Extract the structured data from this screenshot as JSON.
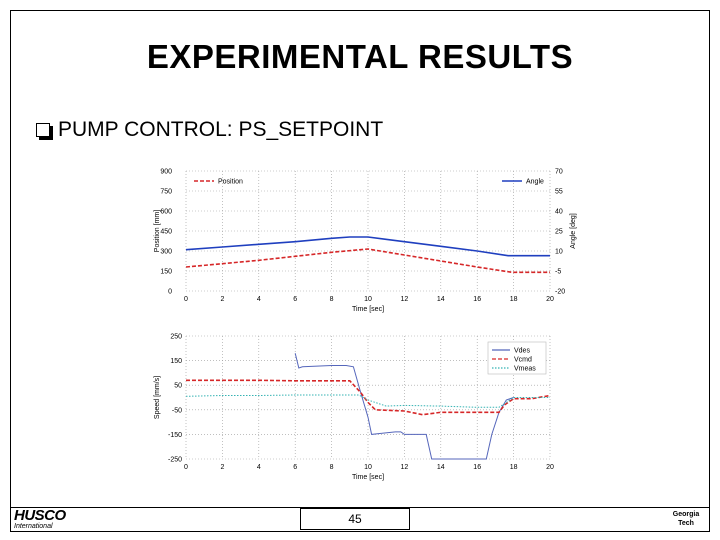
{
  "slide": {
    "title": "EXPERIMENTAL RESULTS",
    "bullet": "PUMP CONTROL: PS_SETPOINT",
    "page_number": "45",
    "logo_left_name": "HUSCO",
    "logo_left_sub": "International",
    "logo_right_line1": "Georgia",
    "logo_right_line2": "Tech"
  },
  "colors": {
    "position": "#d62728",
    "angle": "#1f3fbf",
    "vdes": "#5566bb",
    "vcmd": "#d62728",
    "vmeas": "#35b3b3"
  },
  "chart_data": [
    {
      "type": "line",
      "xlabel": "Time [sec]",
      "ylabel": "Position [mm]",
      "y2label": "Angle [deg]",
      "xlim": [
        0,
        20
      ],
      "ylim": [
        0,
        900
      ],
      "y2lim": [
        -20,
        70
      ],
      "xticks": [
        "0",
        "2",
        "4",
        "6",
        "8",
        "10",
        "12",
        "14",
        "16",
        "18",
        "20"
      ],
      "yticks": [
        "900",
        "750",
        "600",
        "450",
        "300",
        "150",
        "0"
      ],
      "y2ticks": [
        "70",
        "55",
        "40",
        "25",
        "10",
        "-5",
        "-20"
      ],
      "grid": true,
      "series": [
        {
          "name": "Position",
          "axis": "left",
          "style": "dashed",
          "x": [
            0,
            2,
            4,
            6,
            8,
            10,
            12,
            14,
            16,
            17.9,
            20
          ],
          "y": [
            180,
            205,
            230,
            260,
            290,
            315,
            270,
            225,
            180,
            140,
            140
          ]
        },
        {
          "name": "Angle",
          "axis": "right",
          "style": "solid",
          "x": [
            0,
            2,
            4,
            6,
            8,
            9,
            10,
            12,
            14,
            16,
            17.7,
            20
          ],
          "y": [
            11,
            13,
            15,
            17,
            19.5,
            20.5,
            20.5,
            17,
            13.5,
            10,
            6.5,
            6.5
          ]
        }
      ],
      "legend": {
        "left": "Position",
        "right": "Angle"
      }
    },
    {
      "type": "line",
      "xlabel": "Time [sec]",
      "ylabel": "Speed [mm/s]",
      "xlim": [
        0,
        20
      ],
      "ylim": [
        -250,
        250
      ],
      "xticks": [
        "0",
        "2",
        "4",
        "6",
        "8",
        "10",
        "12",
        "14",
        "16",
        "18",
        "20"
      ],
      "yticks": [
        "250",
        "150",
        "50",
        "-50",
        "-150",
        "-250"
      ],
      "grid": true,
      "legend_entries": [
        "Vdes",
        "Vcmd",
        "Vmeas"
      ],
      "series": [
        {
          "name": "Vdes",
          "style": "solid",
          "x": [
            6,
            6.2,
            6.4,
            8,
            8.8,
            9.2,
            9.6,
            10,
            10.2,
            11.5,
            11.8,
            12,
            13.2,
            13.5,
            16.5,
            16.8,
            17.2,
            17.6,
            18
          ],
          "y": [
            180,
            120,
            125,
            130,
            130,
            125,
            20,
            -80,
            -150,
            -140,
            -140,
            -150,
            -150,
            -250,
            -250,
            -150,
            -60,
            -10,
            0
          ]
        },
        {
          "name": "Vcmd",
          "style": "dashed",
          "x": [
            0,
            2,
            4,
            6,
            8,
            9,
            9.6,
            10,
            10.4,
            12,
            13,
            14,
            16,
            17.2,
            17.5,
            18,
            19,
            20
          ],
          "y": [
            70,
            70,
            70,
            68,
            68,
            68,
            20,
            -20,
            -50,
            -55,
            -70,
            -60,
            -60,
            -60,
            -30,
            -5,
            -5,
            8
          ]
        },
        {
          "name": "Vmeas",
          "style": "dotted",
          "x": [
            0,
            2,
            4,
            6,
            8,
            9.5,
            10,
            11,
            12,
            14,
            16,
            17.2,
            18,
            20
          ],
          "y": [
            5,
            8,
            8,
            10,
            10,
            10,
            -10,
            -35,
            -32,
            -35,
            -40,
            -40,
            0,
            0
          ]
        }
      ]
    }
  ]
}
